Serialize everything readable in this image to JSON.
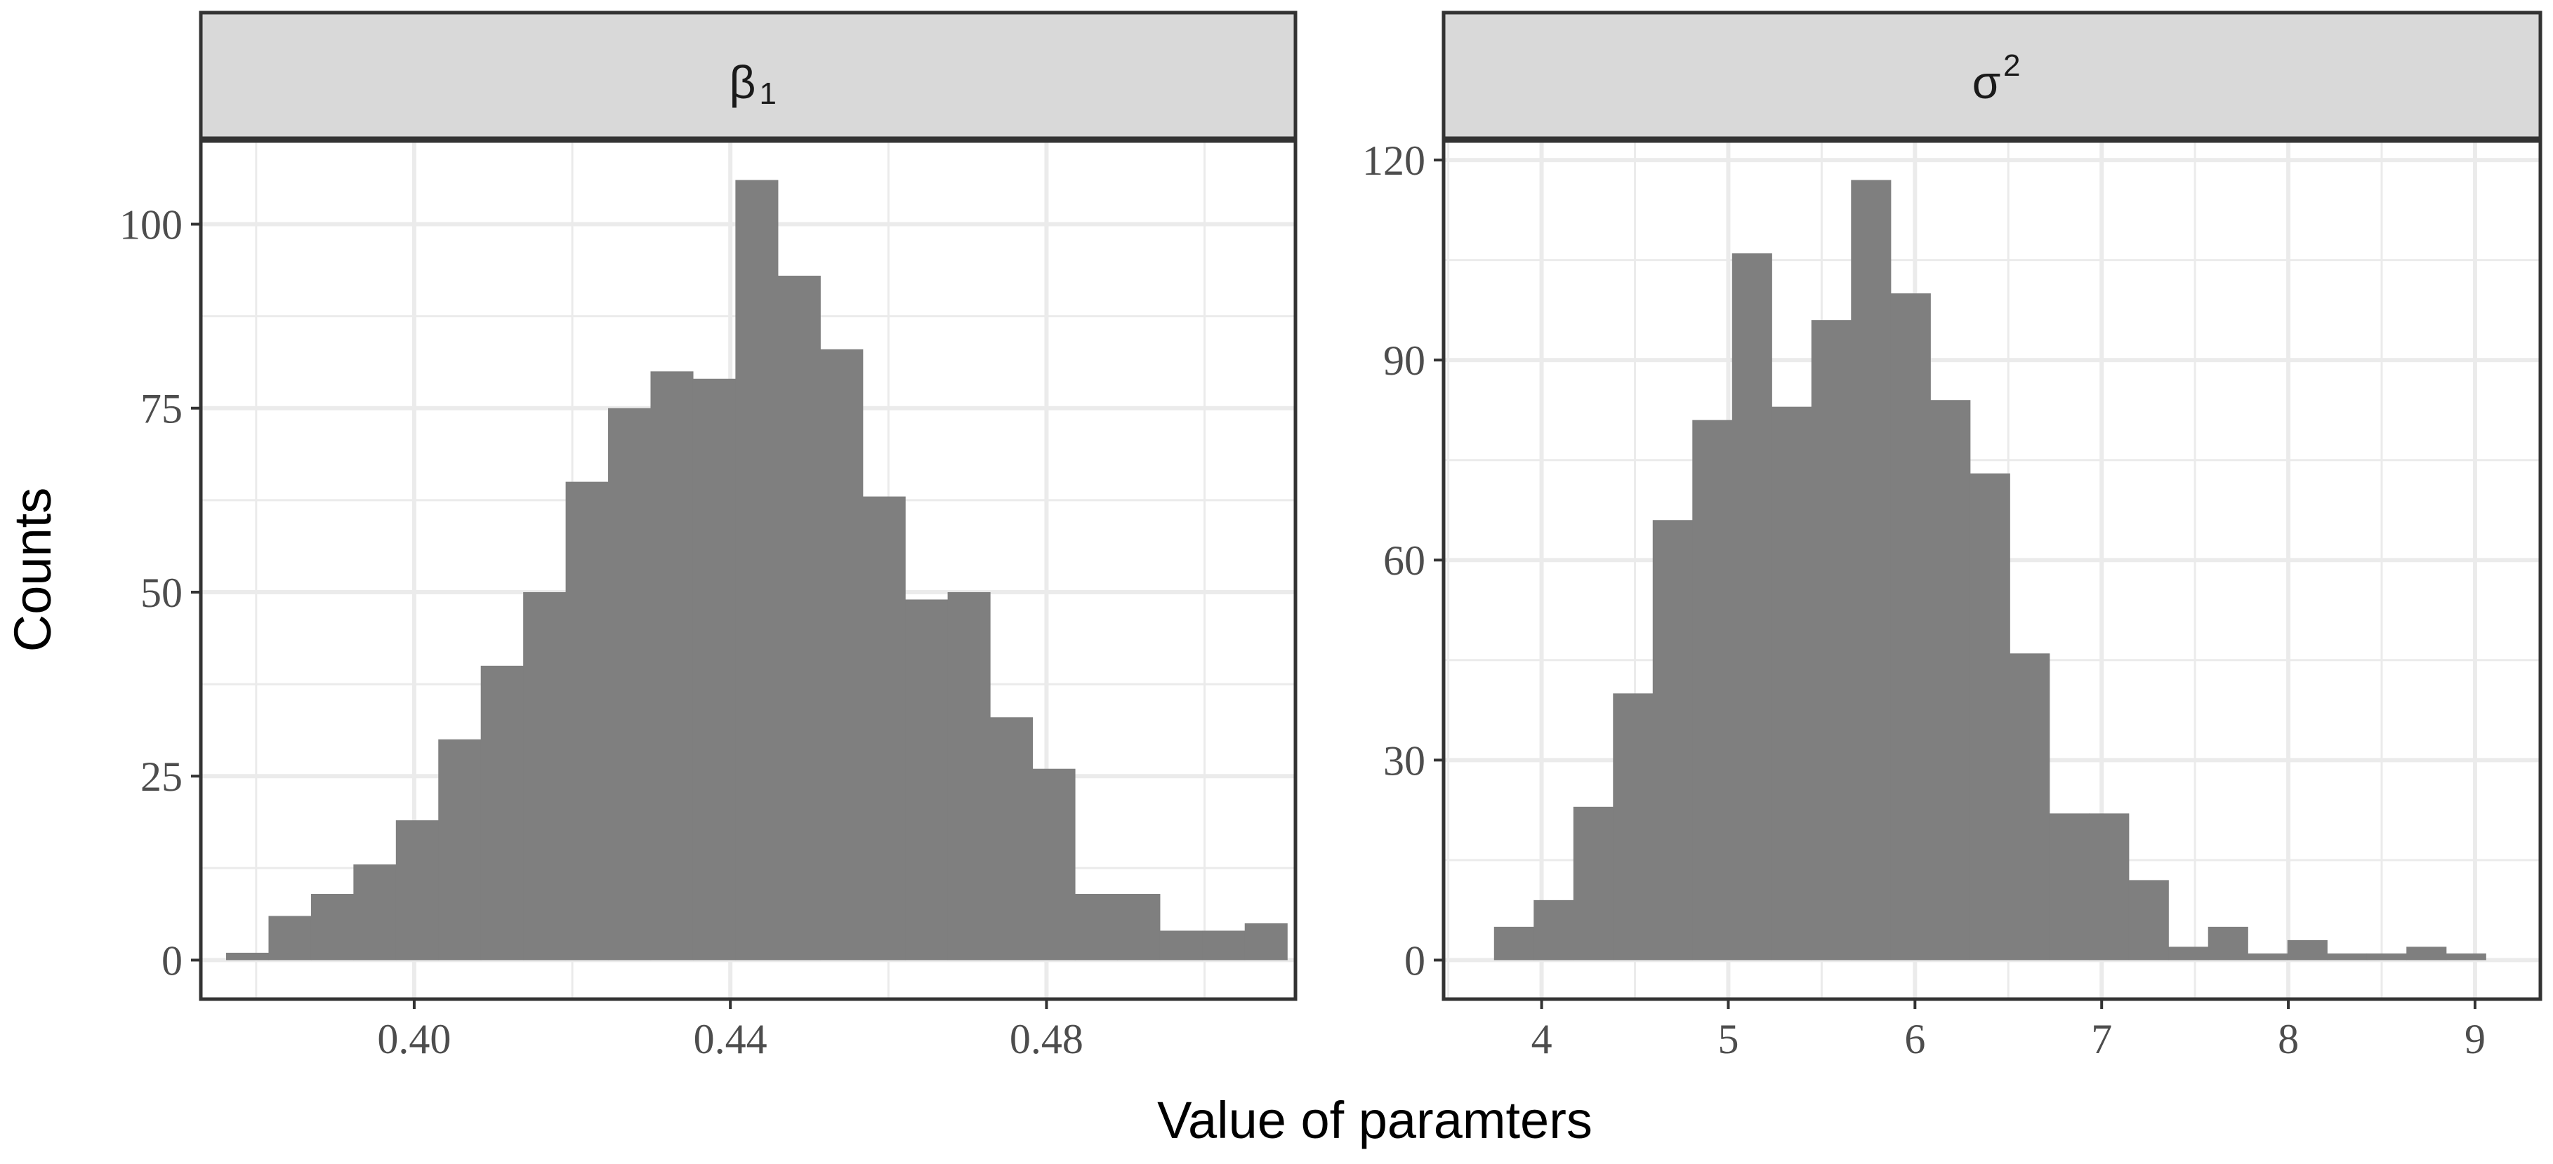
{
  "chart_data": {
    "type": "bar",
    "xlabel": "Value of paramters",
    "ylabel": "Counts",
    "colors": {
      "bar": "#7f7f7f",
      "strip": "#d9d9d9",
      "grid": "#ebebeb",
      "border": "#333333"
    },
    "panels": [
      {
        "strip_label": "β",
        "strip_subscript": "1",
        "xlim": [
          0.373,
          0.5115
        ],
        "ylim": [
          -5.3,
          111.3
        ],
        "xticks": [
          0.4,
          0.44,
          0.48
        ],
        "xtick_labels": [
          "0.40",
          "0.44",
          "0.48"
        ],
        "yticks": [
          0,
          25,
          50,
          75,
          100
        ],
        "ytick_labels": [
          "0",
          "25",
          "50",
          "75",
          "100"
        ],
        "bin_start": 0.3762,
        "bin_width": 0.00537,
        "counts": [
          1,
          6,
          9,
          13,
          19,
          30,
          40,
          50,
          65,
          75,
          80,
          79,
          106,
          93,
          83,
          63,
          49,
          50,
          33,
          26,
          9,
          9,
          4,
          4,
          5
        ]
      },
      {
        "strip_label": "σ",
        "strip_superscript": "2",
        "xlim": [
          3.475,
          9.35
        ],
        "ylim": [
          -5.85,
          122.85
        ],
        "xticks": [
          4,
          5,
          6,
          7,
          8,
          9
        ],
        "xtick_labels": [
          "4",
          "5",
          "6",
          "7",
          "8",
          "9"
        ],
        "yticks": [
          0,
          30,
          60,
          90,
          120
        ],
        "ytick_labels": [
          "0",
          "30",
          "60",
          "90",
          "120"
        ],
        "bin_start": 3.745,
        "bin_width": 0.2125,
        "counts": [
          5,
          9,
          23,
          40,
          66,
          81,
          106,
          83,
          96,
          117,
          100,
          84,
          73,
          46,
          22,
          22,
          12,
          2,
          5,
          1,
          3,
          1,
          1,
          2,
          1
        ]
      }
    ]
  }
}
